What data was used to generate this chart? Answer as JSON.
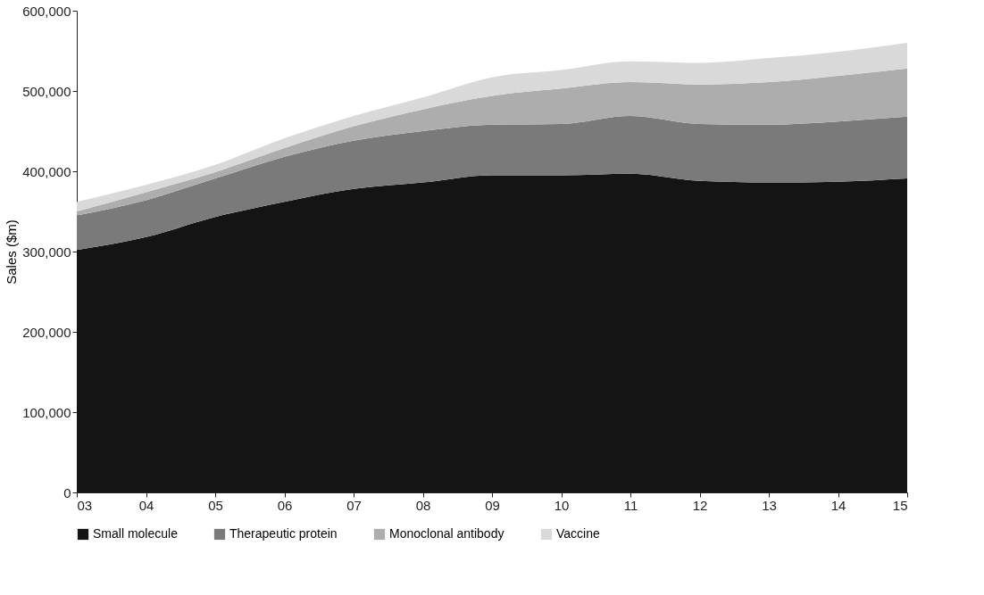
{
  "chart_data": {
    "type": "area",
    "stacked": true,
    "ylabel": "Sales ($m)",
    "x": [
      2003,
      2004,
      2005,
      2006,
      2007,
      2008,
      2009,
      2010,
      2011,
      2012,
      2013,
      2014,
      2015
    ],
    "xlim": [
      2003,
      2015
    ],
    "xticks": [
      {
        "value": 2003,
        "label": "03"
      },
      {
        "value": 2004,
        "label": "04"
      },
      {
        "value": 2005,
        "label": "05"
      },
      {
        "value": 2006,
        "label": "06"
      },
      {
        "value": 2007,
        "label": "07"
      },
      {
        "value": 2008,
        "label": "08"
      },
      {
        "value": 2009,
        "label": "09"
      },
      {
        "value": 2010,
        "label": "10"
      },
      {
        "value": 2011,
        "label": "11"
      },
      {
        "value": 2012,
        "label": "12"
      },
      {
        "value": 2013,
        "label": "13"
      },
      {
        "value": 2014,
        "label": "14"
      },
      {
        "value": 2015,
        "label": "15"
      }
    ],
    "ylim": [
      0,
      600000
    ],
    "yticks": [
      {
        "value": 0,
        "label": "0"
      },
      {
        "value": 100000,
        "label": "100,000"
      },
      {
        "value": 200000,
        "label": "200,000"
      },
      {
        "value": 300000,
        "label": "300,000"
      },
      {
        "value": 400000,
        "label": "400,000"
      },
      {
        "value": 500000,
        "label": "500,000"
      },
      {
        "value": 600000,
        "label": "600,000"
      }
    ],
    "grid": false,
    "legend": "bottom",
    "series": [
      {
        "name": "Small molecule",
        "color": "#141414",
        "values": [
          302000,
          318000,
          343000,
          362000,
          378000,
          386000,
          395000,
          395000,
          397000,
          388000,
          386000,
          387000,
          391000
        ]
      },
      {
        "name": "Therapeutic protein",
        "color": "#7a7a7a",
        "values": [
          43000,
          46000,
          48000,
          56000,
          60000,
          64000,
          63000,
          64000,
          72000,
          71000,
          72000,
          75000,
          77000
        ]
      },
      {
        "name": "Monoclonal antibody",
        "color": "#adadad",
        "values": [
          5000,
          10000,
          8000,
          11000,
          18000,
          27000,
          36000,
          44000,
          42000,
          49000,
          53000,
          57000,
          60000
        ]
      },
      {
        "name": "Vaccine",
        "color": "#d9d9d9",
        "values": [
          12000,
          9000,
          9000,
          12000,
          13000,
          15000,
          23000,
          23000,
          26000,
          27000,
          30000,
          30000,
          32000
        ]
      }
    ]
  }
}
